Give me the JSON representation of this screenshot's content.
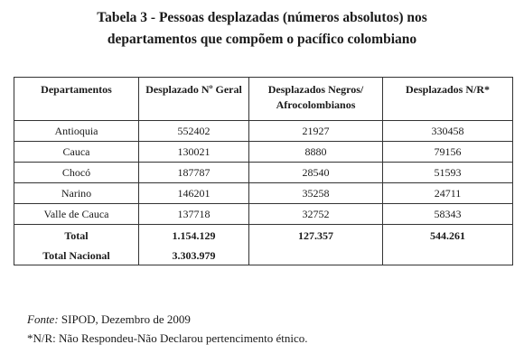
{
  "title": {
    "line1": "Tabela 3 - Pessoas desplazadas (números absolutos) nos",
    "line2": "departamentos que compõem o pacífico colombiano"
  },
  "table": {
    "headers": [
      "Departamentos",
      "Desplazado Nº Geral",
      "Desplazados Negros/ Afrocolombianos",
      "Desplazados N/R*"
    ],
    "rows": [
      [
        "Antioquia",
        "552402",
        "21927",
        "330458"
      ],
      [
        "Cauca",
        "130021",
        "8880",
        "79156"
      ],
      [
        "Chocó",
        "187787",
        "28540",
        "51593"
      ],
      [
        "Narino",
        "146201",
        "35258",
        "24711"
      ],
      [
        "Valle de Cauca",
        "137718",
        "32752",
        "58343"
      ]
    ],
    "total": {
      "label": "Total",
      "geral": "1.154.129",
      "negros": "127.357",
      "nr": "544.261"
    },
    "total_nacional": {
      "label": "Total Nacional",
      "geral": "3.303.979"
    }
  },
  "footnote": {
    "source_label": "Fonte:",
    "source_text": " SIPOD, Dezembro de 2009",
    "nr_note": "*N/R: Não Respondeu-Não Declarou pertencimento étnico."
  }
}
